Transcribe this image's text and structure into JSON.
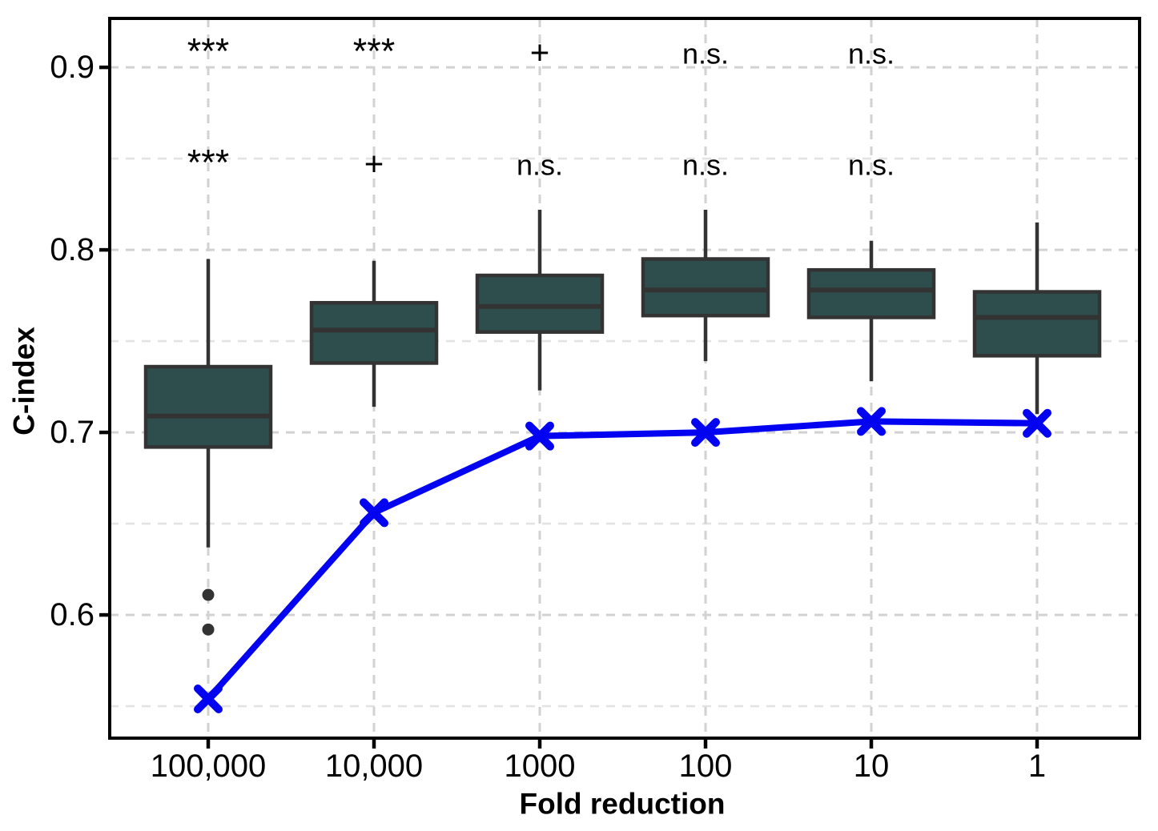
{
  "figure": {
    "background": "#FFFFFF",
    "xlabel": "Fold reduction",
    "ylabel": "C-index"
  },
  "chart_data": {
    "type": "box",
    "title": "",
    "xlabel": "Fold reduction",
    "ylabel": "C-index",
    "legend_position": "none",
    "grid": "dashed-major-and-minor-horizontal, dashed-major-vertical",
    "categories": [
      "100,000",
      "10,000",
      "1000",
      "100",
      "10",
      "1"
    ],
    "axes": {
      "ylim": [
        0.5325,
        0.9268
      ],
      "y_major_ticks": [
        {
          "value": 0.6,
          "label": "0.6"
        },
        {
          "value": 0.7,
          "label": "0.7"
        },
        {
          "value": 0.8,
          "label": "0.8"
        },
        {
          "value": 0.9,
          "label": "0.9"
        }
      ],
      "y_minor_ticks": [
        0.55,
        0.65,
        0.75,
        0.85
      ]
    },
    "boxplots": [
      {
        "category": "100,000",
        "whisker_low": 0.637,
        "q1": 0.692,
        "median": 0.709,
        "q3": 0.736,
        "whisker_high": 0.795,
        "outliers": [
          0.611,
          0.592
        ]
      },
      {
        "category": "10,000",
        "whisker_low": 0.714,
        "q1": 0.738,
        "median": 0.756,
        "q3": 0.771,
        "whisker_high": 0.794,
        "outliers": []
      },
      {
        "category": "1000",
        "whisker_low": 0.723,
        "q1": 0.755,
        "median": 0.769,
        "q3": 0.786,
        "whisker_high": 0.822,
        "outliers": []
      },
      {
        "category": "100",
        "whisker_low": 0.739,
        "q1": 0.764,
        "median": 0.778,
        "q3": 0.795,
        "whisker_high": 0.822,
        "outliers": []
      },
      {
        "category": "10",
        "whisker_low": 0.728,
        "q1": 0.763,
        "median": 0.778,
        "q3": 0.789,
        "whisker_high": 0.805,
        "outliers": []
      },
      {
        "category": "1",
        "whisker_low": 0.71,
        "q1": 0.742,
        "median": 0.763,
        "q3": 0.777,
        "whisker_high": 0.815,
        "outliers": []
      }
    ],
    "line_series": {
      "name": "blue-x-line",
      "marker": "x",
      "values": [
        0.554,
        0.656,
        0.698,
        0.7,
        0.706,
        0.705
      ]
    },
    "annotations": [
      {
        "row": "top",
        "color_key": "line",
        "y_value": 0.902,
        "labels": [
          "***",
          "***",
          "+",
          "n.s.",
          "n.s.",
          ""
        ]
      },
      {
        "row": "bottom",
        "color_key": "black",
        "y_value": 0.841,
        "labels": [
          "***",
          "+",
          "n.s.",
          "n.s.",
          "n.s.",
          ""
        ]
      }
    ],
    "colors": {
      "box_fill": "#2E4E4D",
      "box_stroke": "#333333",
      "line": "#0303F2",
      "black": "#000000",
      "grid_major": "#D2D2D2",
      "grid_minor": "#E3E3E3",
      "axis": "#000000",
      "outlier": "#333333"
    }
  }
}
